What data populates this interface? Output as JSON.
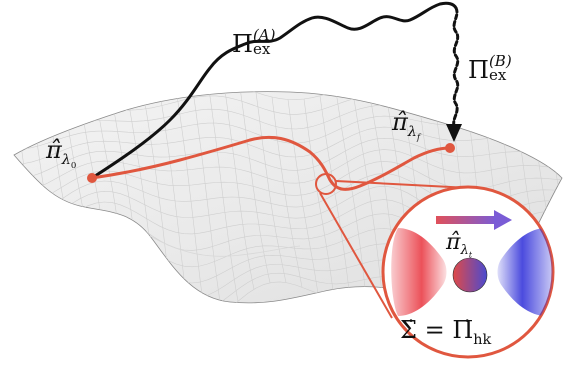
{
  "labels": {
    "pi_start": {
      "base": "π̂",
      "sub": "λ",
      "subsub": "0"
    },
    "pi_final": {
      "base": "π̂",
      "sub": "λ",
      "subsub": "f"
    },
    "pi_t": {
      "base": "π̂",
      "sub": "λ",
      "subsub": "t"
    },
    "pi_ex_A": {
      "base": "Π",
      "sub": "ex",
      "sup": "(A)"
    },
    "pi_ex_B": {
      "base": "Π",
      "sub": "ex",
      "sup": "(B)"
    },
    "equation": {
      "lhs": "Σ̇",
      "eq": " = ",
      "rhs": "Π̇",
      "rhs_sub": "hk"
    }
  },
  "colors": {
    "protocol": "#e0573f",
    "path_a": "#111111",
    "path_b": "#111111",
    "surface_fill": "#eeeeee",
    "surface_grid": "#c8c8c8",
    "hot": "#e8323c",
    "cold": "#2b2bd8",
    "arrow_start": "#e0505a",
    "arrow_end": "#7a5cd6"
  },
  "icons": {
    "arrow": "arrow-right-icon"
  }
}
